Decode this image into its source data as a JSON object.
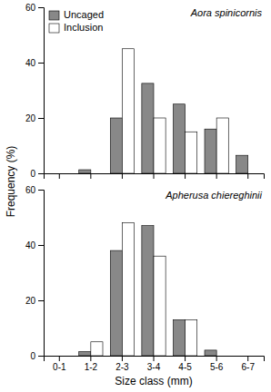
{
  "chart_data": [
    {
      "type": "bar",
      "title": "Aora spinicornis",
      "categories": [
        null,
        null,
        null,
        null,
        null,
        null,
        null
      ],
      "series": [
        {
          "name": "Uncaged",
          "color": "#888888",
          "values": [
            0,
            1.3,
            20,
            32.5,
            25,
            16,
            6.5
          ]
        },
        {
          "name": "Inclusion",
          "color": "#ffffff",
          "values": [
            0,
            0,
            45,
            20,
            15,
            20,
            0
          ]
        }
      ],
      "ylabel": "Frequency (%)",
      "ylim": [
        0,
        60
      ],
      "yticks": [
        0,
        20,
        40,
        60
      ],
      "legend": "upper left",
      "grid": false
    },
    {
      "type": "bar",
      "title": "Apherusa chiereghinii",
      "categories": [
        "0-1",
        "1-2",
        "2-3",
        "3-4",
        "4-5",
        "5-6",
        "6-7"
      ],
      "series": [
        {
          "color": "#888888",
          "values": [
            0,
            1.5,
            38,
            47,
            13,
            2,
            0
          ]
        },
        {
          "color": "#ffffff",
          "values": [
            0,
            5,
            48,
            36,
            13,
            0,
            0
          ]
        }
      ],
      "xlabel": "Size class (mm)",
      "ylim": [
        0,
        60
      ],
      "yticks": [
        0,
        20,
        40,
        60
      ],
      "grid": false
    }
  ]
}
